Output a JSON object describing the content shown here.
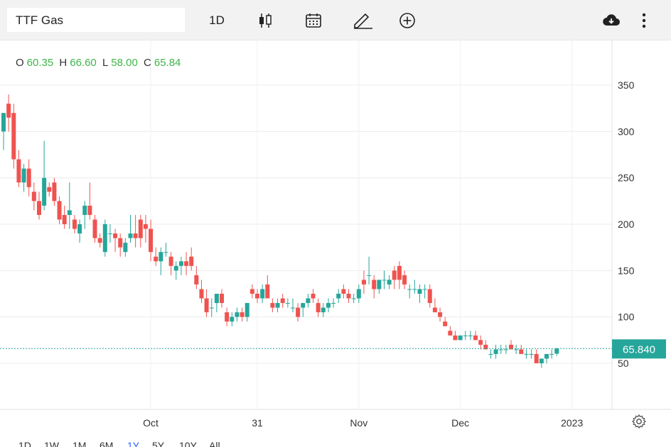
{
  "toolbar": {
    "symbol": "TTF Gas",
    "interval": "1D",
    "icons": [
      "candlestick-icon",
      "calendar-icon",
      "draw-pencil-icon",
      "add-indicator-icon",
      "download-cloud-icon",
      "more-vertical-icon"
    ]
  },
  "ohlc": {
    "o_label": "O",
    "o_value": "60.35",
    "h_label": "H",
    "h_value": "66.60",
    "l_label": "L",
    "l_value": "58.00",
    "c_label": "C",
    "c_value": "65.84"
  },
  "price_label": "65.840",
  "range_buttons": [
    "1D",
    "1W",
    "1M",
    "6M",
    "1Y",
    "5Y",
    "10Y",
    "All"
  ],
  "active_range": "1Y",
  "colors": {
    "up": "#26a69a",
    "down": "#ef5350",
    "price_label_bg": "#26a69a",
    "active_range": "#2962ff",
    "value_green": "#3fb54a"
  },
  "chart_data": {
    "type": "candlestick",
    "title": "",
    "xlabel": "",
    "ylabel": "",
    "ylim": [
      0,
      390
    ],
    "y_ticks": [
      50,
      100,
      150,
      200,
      250,
      300,
      350
    ],
    "x_ticks": [
      "Oct",
      "31",
      "Nov",
      "Dec",
      "2023"
    ],
    "x_tick_index": [
      29,
      50,
      70,
      90,
      112
    ],
    "last_price": 65.84,
    "grid": true,
    "candles": [
      [
        300,
        320,
        280,
        320
      ],
      [
        330,
        340,
        300,
        315
      ],
      [
        320,
        330,
        260,
        270
      ],
      [
        270,
        280,
        240,
        245
      ],
      [
        245,
        265,
        235,
        260
      ],
      [
        260,
        270,
        230,
        240
      ],
      [
        235,
        245,
        215,
        225
      ],
      [
        225,
        235,
        205,
        210
      ],
      [
        220,
        290,
        215,
        250
      ],
      [
        240,
        245,
        230,
        235
      ],
      [
        245,
        250,
        220,
        225
      ],
      [
        225,
        230,
        200,
        205
      ],
      [
        210,
        220,
        195,
        200
      ],
      [
        210,
        245,
        195,
        215
      ],
      [
        205,
        210,
        190,
        195
      ],
      [
        190,
        205,
        180,
        200
      ],
      [
        210,
        225,
        195,
        220
      ],
      [
        220,
        245,
        205,
        210
      ],
      [
        205,
        210,
        180,
        185
      ],
      [
        185,
        190,
        175,
        180
      ],
      [
        170,
        205,
        165,
        200
      ],
      [
        190,
        200,
        180,
        190
      ],
      [
        190,
        195,
        170,
        185
      ],
      [
        185,
        190,
        165,
        175
      ],
      [
        170,
        185,
        165,
        180
      ],
      [
        185,
        210,
        180,
        190
      ],
      [
        190,
        210,
        175,
        185
      ],
      [
        205,
        210,
        175,
        185
      ],
      [
        200,
        210,
        180,
        195
      ],
      [
        195,
        205,
        160,
        170
      ],
      [
        165,
        175,
        155,
        160
      ],
      [
        160,
        175,
        145,
        170
      ],
      [
        170,
        180,
        165,
        170
      ],
      [
        165,
        170,
        145,
        155
      ],
      [
        150,
        160,
        140,
        155
      ],
      [
        155,
        165,
        145,
        160
      ],
      [
        160,
        170,
        145,
        155
      ],
      [
        165,
        175,
        150,
        155
      ],
      [
        145,
        155,
        130,
        135
      ],
      [
        130,
        140,
        115,
        120
      ],
      [
        120,
        130,
        100,
        105
      ],
      [
        110,
        120,
        100,
        110
      ],
      [
        115,
        125,
        105,
        125
      ],
      [
        125,
        130,
        110,
        115
      ],
      [
        105,
        110,
        90,
        95
      ],
      [
        95,
        105,
        90,
        100
      ],
      [
        100,
        110,
        95,
        105
      ],
      [
        105,
        110,
        95,
        100
      ],
      [
        100,
        115,
        95,
        115
      ],
      [
        130,
        135,
        120,
        125
      ],
      [
        125,
        130,
        115,
        120
      ],
      [
        120,
        135,
        115,
        130
      ],
      [
        135,
        145,
        120,
        120
      ],
      [
        115,
        120,
        105,
        110
      ],
      [
        110,
        120,
        105,
        115
      ],
      [
        120,
        125,
        110,
        115
      ],
      [
        115,
        120,
        110,
        115
      ],
      [
        110,
        120,
        105,
        110
      ],
      [
        110,
        115,
        95,
        100
      ],
      [
        110,
        115,
        100,
        115
      ],
      [
        115,
        125,
        110,
        120
      ],
      [
        125,
        130,
        115,
        120
      ],
      [
        115,
        120,
        100,
        105
      ],
      [
        105,
        115,
        100,
        110
      ],
      [
        110,
        120,
        105,
        115
      ],
      [
        115,
        120,
        110,
        115
      ],
      [
        120,
        130,
        115,
        125
      ],
      [
        130,
        135,
        120,
        125
      ],
      [
        125,
        130,
        115,
        120
      ],
      [
        120,
        125,
        115,
        120
      ],
      [
        120,
        135,
        115,
        130
      ],
      [
        140,
        150,
        125,
        135
      ],
      [
        145,
        165,
        135,
        145
      ],
      [
        140,
        145,
        120,
        130
      ],
      [
        130,
        140,
        125,
        140
      ],
      [
        140,
        150,
        130,
        140
      ],
      [
        135,
        145,
        130,
        140
      ],
      [
        150,
        155,
        130,
        140
      ],
      [
        155,
        160,
        130,
        140
      ],
      [
        145,
        150,
        130,
        135
      ],
      [
        130,
        135,
        120,
        130
      ],
      [
        130,
        140,
        125,
        130
      ],
      [
        125,
        135,
        115,
        130
      ],
      [
        130,
        135,
        120,
        130
      ],
      [
        130,
        135,
        110,
        115
      ],
      [
        110,
        120,
        105,
        105
      ],
      [
        105,
        110,
        95,
        100
      ],
      [
        95,
        100,
        90,
        90
      ],
      [
        85,
        90,
        80,
        80
      ],
      [
        80,
        85,
        75,
        75
      ],
      [
        75,
        80,
        75,
        80
      ],
      [
        80,
        85,
        75,
        80
      ],
      [
        80,
        85,
        75,
        80
      ],
      [
        80,
        85,
        75,
        75
      ],
      [
        75,
        80,
        65,
        70
      ],
      [
        70,
        75,
        65,
        65
      ],
      [
        60,
        65,
        55,
        60
      ],
      [
        60,
        70,
        55,
        65
      ],
      [
        65,
        70,
        60,
        65
      ],
      [
        65,
        70,
        60,
        65
      ],
      [
        70,
        75,
        65,
        65
      ],
      [
        65,
        70,
        60,
        65
      ],
      [
        65,
        70,
        60,
        60
      ],
      [
        60,
        65,
        55,
        60
      ],
      [
        60,
        65,
        55,
        60
      ],
      [
        60,
        65,
        50,
        50
      ],
      [
        50,
        55,
        45,
        55
      ],
      [
        55,
        60,
        50,
        60
      ],
      [
        60,
        65,
        55,
        60
      ],
      [
        60.35,
        66.6,
        58,
        65.84
      ]
    ]
  }
}
